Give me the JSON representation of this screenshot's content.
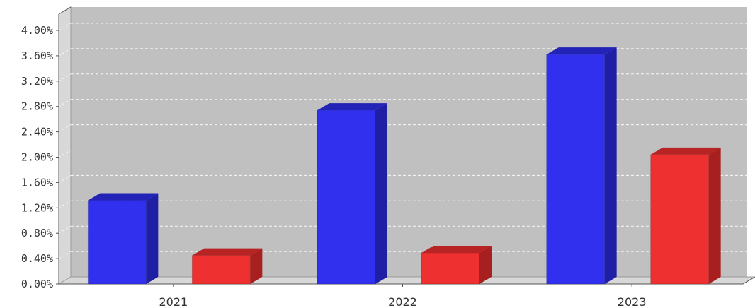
{
  "chart_data": {
    "type": "bar",
    "three_d": true,
    "categories": [
      "2021",
      "2022",
      "2023"
    ],
    "series": [
      {
        "color": "#3030ee",
        "side_color": "#1f1fa6",
        "top_color": "#2323b8",
        "values": [
          1.32,
          2.74,
          3.62
        ]
      },
      {
        "color": "#ee3030",
        "side_color": "#a81f1f",
        "top_color": "#b82323",
        "values": [
          0.45,
          0.49,
          2.04
        ]
      }
    ],
    "ylim": [
      0,
      4.0
    ],
    "yticks": [
      {
        "value": 0.0,
        "label": "0.00%"
      },
      {
        "value": 0.4,
        "label": "0.40%"
      },
      {
        "value": 0.8,
        "label": "0.80%"
      },
      {
        "value": 1.2,
        "label": "1.20%"
      },
      {
        "value": 1.6,
        "label": "1.60%"
      },
      {
        "value": 2.0,
        "label": "2.00%"
      },
      {
        "value": 2.4,
        "label": "2.40%"
      },
      {
        "value": 2.8,
        "label": "2.80%"
      },
      {
        "value": 3.2,
        "label": "3.20%"
      },
      {
        "value": 3.6,
        "label": "3.60%"
      },
      {
        "value": 4.0,
        "label": "4.00%"
      }
    ],
    "grid": true,
    "plot_background": "#c0c0c0",
    "title": "",
    "xlabel": "",
    "ylabel": ""
  }
}
